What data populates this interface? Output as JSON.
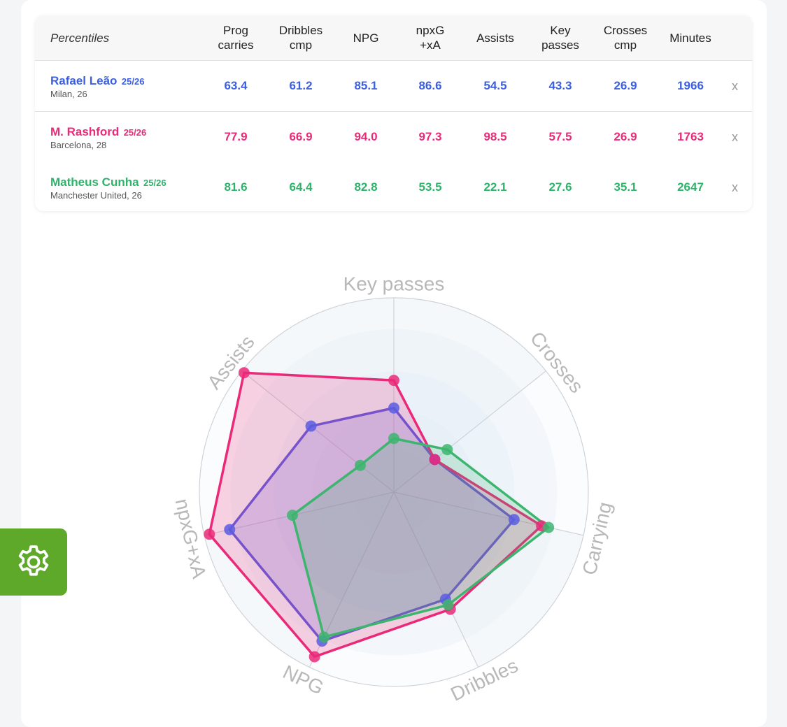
{
  "table": {
    "header_label": "Percentiles",
    "columns": [
      "Prog\ncarries",
      "Dribbles\ncmp",
      "NPG",
      "npxG\n+xA",
      "Assists",
      "Key\npasses",
      "Crosses\ncmp",
      "Minutes"
    ],
    "remove_label": "x",
    "rows": [
      {
        "name": "Rafael Leão",
        "season": "25/26",
        "club": "Milan, 26",
        "values": [
          "63.4",
          "61.2",
          "85.1",
          "86.6",
          "54.5",
          "43.3",
          "26.9",
          "1966"
        ]
      },
      {
        "name": "M. Rashford",
        "season": "25/26",
        "club": "Barcelona, 28",
        "values": [
          "77.9",
          "66.9",
          "94.0",
          "97.3",
          "98.5",
          "57.5",
          "26.9",
          "1763"
        ]
      },
      {
        "name": "Matheus Cunha",
        "season": "25/26",
        "club": "Manchester United, 26",
        "values": [
          "81.6",
          "64.4",
          "82.8",
          "53.5",
          "22.1",
          "27.6",
          "35.1",
          "2647"
        ]
      }
    ]
  },
  "chart_data": {
    "type": "radar",
    "axes": [
      "Key passes",
      "Crosses",
      "Carrying",
      "Dribbles",
      "NPG",
      "npxG+xA",
      "Assists"
    ],
    "range": [
      0,
      100
    ],
    "series": [
      {
        "name": "Rafael Leão",
        "color": "#5a5de0",
        "values": [
          43.3,
          26.9,
          63.4,
          61.2,
          85.1,
          86.6,
          54.5
        ]
      },
      {
        "name": "M. Rashford",
        "color": "#ea2a79",
        "values": [
          57.5,
          26.9,
          77.9,
          66.9,
          94.0,
          97.3,
          98.5
        ]
      },
      {
        "name": "Matheus Cunha",
        "color": "#3db56f",
        "values": [
          27.6,
          35.1,
          81.6,
          64.4,
          82.8,
          53.5,
          22.1
        ]
      }
    ]
  },
  "settings": {
    "icon": "gear-icon",
    "color": "#5ea82a"
  }
}
